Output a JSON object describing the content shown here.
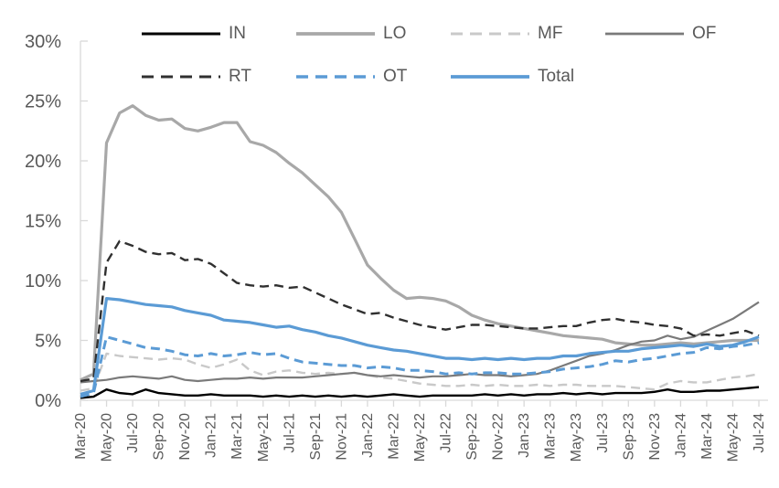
{
  "chart_data": {
    "type": "line",
    "title": "",
    "xlabel": "",
    "ylabel": "",
    "ylim": [
      0,
      30
    ],
    "grid": false,
    "legend_position": "top",
    "y_tick_labels": [
      "0%",
      "5%",
      "10%",
      "15%",
      "20%",
      "25%",
      "30%"
    ],
    "x_tick_labels": [
      "Mar-20",
      "May-20",
      "Jul-20",
      "Sep-20",
      "Nov-20",
      "Jan-21",
      "Mar-21",
      "May-21",
      "Jul-21",
      "Sep-21",
      "Nov-21",
      "Jan-22",
      "Mar-22",
      "May-22",
      "Jul-22",
      "Sep-22",
      "Nov-22",
      "Jan-23",
      "Mar-23",
      "May-23",
      "Jul-23",
      "Sep-23",
      "Nov-23",
      "Jan-24",
      "Mar-24",
      "May-24",
      "Jul-24"
    ],
    "x_monthly": [
      "Mar-20",
      "Apr-20",
      "May-20",
      "Jun-20",
      "Jul-20",
      "Aug-20",
      "Sep-20",
      "Oct-20",
      "Nov-20",
      "Dec-20",
      "Jan-21",
      "Feb-21",
      "Mar-21",
      "Apr-21",
      "May-21",
      "Jun-21",
      "Jul-21",
      "Aug-21",
      "Sep-21",
      "Oct-21",
      "Nov-21",
      "Dec-21",
      "Jan-22",
      "Feb-22",
      "Mar-22",
      "Apr-22",
      "May-22",
      "Jun-22",
      "Jul-22",
      "Aug-22",
      "Sep-22",
      "Oct-22",
      "Nov-22",
      "Dec-22",
      "Jan-23",
      "Feb-23",
      "Mar-23",
      "Apr-23",
      "May-23",
      "Jun-23",
      "Jul-23",
      "Aug-23",
      "Sep-23",
      "Oct-23",
      "Nov-23",
      "Dec-23",
      "Jan-24",
      "Feb-24",
      "Mar-24",
      "Apr-24",
      "May-24",
      "Jun-24",
      "Jul-24"
    ],
    "series": [
      {
        "name": "IN",
        "color": "#000000",
        "style": "solid",
        "width": 2.4,
        "values": [
          0.2,
          0.3,
          0.9,
          0.6,
          0.5,
          0.9,
          0.6,
          0.5,
          0.4,
          0.4,
          0.5,
          0.4,
          0.4,
          0.4,
          0.3,
          0.4,
          0.3,
          0.4,
          0.3,
          0.4,
          0.3,
          0.4,
          0.3,
          0.4,
          0.5,
          0.4,
          0.3,
          0.4,
          0.4,
          0.4,
          0.4,
          0.5,
          0.4,
          0.5,
          0.4,
          0.5,
          0.5,
          0.6,
          0.5,
          0.6,
          0.5,
          0.6,
          0.6,
          0.6,
          0.7,
          0.9,
          0.7,
          0.7,
          0.8,
          0.8,
          0.9,
          1.0,
          1.1
        ]
      },
      {
        "name": "LO",
        "color": "#a8a8a8",
        "style": "solid",
        "width": 3.2,
        "values": [
          1.7,
          2.2,
          21.5,
          24.0,
          24.6,
          23.8,
          23.4,
          23.5,
          22.7,
          22.5,
          22.8,
          23.2,
          23.2,
          21.6,
          21.3,
          20.7,
          19.8,
          19.0,
          18.0,
          17.0,
          15.7,
          13.5,
          11.3,
          10.2,
          9.2,
          8.5,
          8.6,
          8.5,
          8.3,
          7.8,
          7.1,
          6.7,
          6.4,
          6.2,
          6.0,
          5.8,
          5.6,
          5.4,
          5.3,
          5.2,
          5.1,
          4.8,
          4.7,
          4.6,
          4.6,
          4.7,
          4.8,
          4.7,
          4.8,
          4.9,
          5.0,
          5.0,
          5.0
        ]
      },
      {
        "name": "MF",
        "color": "#c9c9c9",
        "style": "dashed",
        "width": 2.4,
        "values": [
          0.8,
          1.0,
          3.9,
          3.7,
          3.6,
          3.5,
          3.4,
          3.5,
          3.4,
          3.0,
          2.7,
          3.0,
          3.4,
          2.5,
          2.1,
          2.4,
          2.5,
          2.3,
          2.2,
          2.3,
          2.2,
          2.3,
          2.1,
          1.9,
          1.8,
          1.6,
          1.4,
          1.3,
          1.2,
          1.2,
          1.3,
          1.2,
          1.3,
          1.2,
          1.2,
          1.3,
          1.2,
          1.3,
          1.3,
          1.2,
          1.2,
          1.2,
          1.1,
          1.0,
          0.9,
          1.4,
          1.6,
          1.5,
          1.5,
          1.7,
          1.9,
          2.0,
          2.2
        ]
      },
      {
        "name": "OF",
        "color": "#7a7a7a",
        "style": "solid",
        "width": 2.2,
        "values": [
          1.5,
          1.6,
          1.7,
          1.9,
          2.0,
          1.9,
          1.8,
          2.0,
          1.7,
          1.6,
          1.7,
          1.8,
          1.8,
          1.9,
          1.8,
          1.9,
          1.9,
          1.9,
          2.0,
          2.1,
          2.2,
          2.3,
          2.1,
          2.0,
          2.1,
          2.0,
          1.9,
          2.0,
          2.0,
          2.1,
          2.2,
          2.1,
          2.1,
          2.0,
          2.1,
          2.2,
          2.5,
          2.9,
          3.3,
          3.7,
          3.9,
          4.2,
          4.6,
          4.9,
          5.0,
          5.4,
          5.1,
          5.3,
          5.8,
          6.3,
          6.8,
          7.5,
          8.2
        ]
      },
      {
        "name": "RT",
        "color": "#303030",
        "style": "dashed",
        "width": 2.4,
        "values": [
          1.6,
          1.8,
          11.5,
          13.3,
          12.9,
          12.4,
          12.2,
          12.3,
          11.7,
          11.8,
          11.4,
          10.6,
          9.8,
          9.6,
          9.5,
          9.6,
          9.4,
          9.5,
          9.0,
          8.5,
          8.0,
          7.6,
          7.2,
          7.3,
          6.9,
          6.6,
          6.3,
          6.1,
          5.9,
          6.1,
          6.3,
          6.3,
          6.2,
          6.1,
          6.0,
          6.0,
          6.1,
          6.2,
          6.2,
          6.5,
          6.7,
          6.8,
          6.6,
          6.5,
          6.3,
          6.2,
          6.0,
          5.4,
          5.5,
          5.4,
          5.6,
          5.8,
          5.4
        ]
      },
      {
        "name": "OT",
        "color": "#5b9bd5",
        "style": "dashed",
        "width": 3.0,
        "values": [
          0.3,
          0.6,
          5.3,
          5.0,
          4.7,
          4.4,
          4.3,
          4.1,
          3.8,
          3.7,
          3.9,
          3.7,
          3.8,
          4.0,
          3.8,
          3.9,
          3.5,
          3.2,
          3.1,
          3.0,
          2.9,
          2.9,
          2.7,
          2.8,
          2.7,
          2.5,
          2.5,
          2.4,
          2.2,
          2.3,
          2.2,
          2.3,
          2.3,
          2.2,
          2.2,
          2.3,
          2.4,
          2.6,
          2.7,
          2.8,
          3.0,
          3.3,
          3.2,
          3.4,
          3.5,
          3.7,
          3.9,
          4.0,
          4.4,
          4.3,
          4.5,
          4.6,
          4.8
        ]
      },
      {
        "name": "Total",
        "color": "#5b9bd5",
        "style": "solid",
        "width": 3.2,
        "values": [
          0.5,
          0.8,
          8.5,
          8.4,
          8.2,
          8.0,
          7.9,
          7.8,
          7.5,
          7.3,
          7.1,
          6.7,
          6.6,
          6.5,
          6.3,
          6.1,
          6.2,
          5.9,
          5.7,
          5.4,
          5.2,
          4.9,
          4.6,
          4.4,
          4.2,
          4.1,
          3.9,
          3.7,
          3.5,
          3.5,
          3.4,
          3.5,
          3.4,
          3.5,
          3.4,
          3.5,
          3.5,
          3.7,
          3.7,
          3.9,
          4.0,
          4.1,
          4.1,
          4.3,
          4.4,
          4.5,
          4.6,
          4.5,
          4.7,
          4.5,
          4.6,
          4.9,
          5.3
        ]
      }
    ],
    "legend_rows": [
      [
        "IN",
        "LO",
        "MF",
        "OF"
      ],
      [
        "RT",
        "OT",
        "Total"
      ]
    ],
    "draw_order": [
      "LO",
      "MF",
      "OF",
      "RT",
      "IN",
      "OT",
      "Total"
    ],
    "axis_color": "#d9d9d9",
    "tick_label_color": "#595959"
  }
}
